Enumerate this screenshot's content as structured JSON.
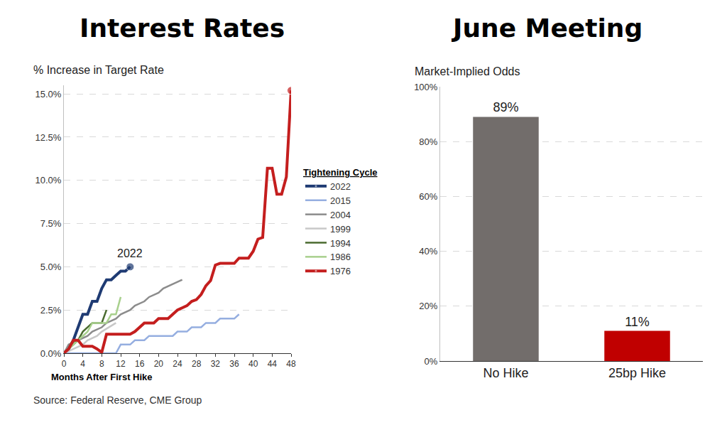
{
  "chart_data": [
    {
      "type": "line",
      "title": "Interest Rates",
      "subtitle": "% Increase in Target Rate",
      "x_label": "Months After First Hike",
      "legend_title": "Tightening Cycle",
      "source": "Source: Federal Reserve, CME Group",
      "annotations": [
        {
          "text": "2022",
          "x": 14,
          "y": 5.0
        }
      ],
      "legend": "right",
      "grid": true,
      "xlim": [
        0,
        48
      ],
      "xticks": [
        0,
        4,
        8,
        12,
        16,
        20,
        24,
        28,
        32,
        36,
        40,
        44,
        48
      ],
      "ylim": [
        0,
        15.5
      ],
      "yticks": [
        {
          "value": 0,
          "label": "0.0%"
        },
        {
          "value": 2.5,
          "label": "2.5%"
        },
        {
          "value": 5,
          "label": "5.0%"
        },
        {
          "value": 7.5,
          "label": "7.5%"
        },
        {
          "value": 10,
          "label": "10.0%"
        },
        {
          "value": 12.5,
          "label": "12.5%"
        },
        {
          "value": 15,
          "label": "15.0%"
        }
      ],
      "series": [
        {
          "name": "2022",
          "color": "#1f3b73",
          "marker": "circle",
          "x": [
            0,
            1,
            2,
            3,
            4,
            5,
            6,
            7,
            8,
            9,
            10,
            11,
            12,
            13,
            14
          ],
          "values": [
            0,
            0.25,
            0.75,
            1.5,
            2.25,
            2.25,
            3.0,
            3.0,
            3.75,
            4.25,
            4.25,
            4.5,
            4.75,
            4.75,
            5.0
          ]
        },
        {
          "name": "2015",
          "color": "#95aee0",
          "x": [
            0,
            11,
            12,
            14,
            15,
            17,
            18,
            23,
            24,
            26,
            27,
            29,
            30,
            32,
            33,
            36,
            37
          ],
          "values": [
            0,
            0,
            0.5,
            0.5,
            0.75,
            0.75,
            1.0,
            1.0,
            1.25,
            1.25,
            1.5,
            1.5,
            1.75,
            1.75,
            2.0,
            2.0,
            2.25
          ]
        },
        {
          "name": "2004",
          "color": "#8c8c8c",
          "x": [
            0,
            1,
            3,
            5,
            6,
            8,
            9,
            11,
            12,
            14,
            15,
            17,
            18,
            20,
            21,
            23,
            25
          ],
          "values": [
            0,
            0.5,
            0.75,
            1.0,
            1.25,
            1.5,
            1.75,
            2.0,
            2.25,
            2.5,
            2.75,
            3.0,
            3.25,
            3.5,
            3.75,
            4.0,
            4.25
          ]
        },
        {
          "name": "1999",
          "color": "#c8c8c8",
          "x": [
            0,
            2,
            4,
            5,
            7,
            8,
            11
          ],
          "values": [
            0,
            0.25,
            0.5,
            0.75,
            1.0,
            1.25,
            1.75
          ]
        },
        {
          "name": "1994",
          "color": "#4a6b2f",
          "x": [
            0,
            1,
            2,
            3,
            4,
            6,
            7,
            8,
            9
          ],
          "values": [
            0,
            0.25,
            0.5,
            0.75,
            1.25,
            1.75,
            1.75,
            1.75,
            2.5
          ]
        },
        {
          "name": "1986",
          "color": "#a8d08d",
          "x": [
            0,
            1,
            2,
            4,
            5,
            6,
            8,
            9,
            10,
            11,
            12
          ],
          "values": [
            0,
            0.25,
            0.5,
            1.0,
            1.25,
            1.75,
            1.75,
            1.75,
            2.25,
            2.25,
            3.25
          ]
        },
        {
          "name": "1976",
          "color": "#c41e1e",
          "marker": "circle",
          "x": [
            0,
            1,
            2,
            3,
            4,
            6,
            7,
            8,
            9,
            10,
            14,
            15,
            17,
            19,
            20,
            22,
            24,
            26,
            27,
            28,
            29,
            30,
            31,
            32,
            33,
            36,
            37,
            39,
            40,
            41,
            42,
            43,
            44,
            45,
            46,
            47,
            48
          ],
          "values": [
            0,
            0.25,
            0.75,
            0.75,
            0.4,
            0.4,
            0.25,
            0.05,
            1.1,
            1.1,
            1.1,
            1.25,
            1.75,
            1.75,
            2.0,
            2.0,
            2.5,
            2.75,
            3.0,
            3.1,
            3.4,
            3.9,
            4.2,
            5.1,
            5.2,
            5.2,
            5.5,
            5.5,
            5.9,
            6.6,
            6.7,
            10.7,
            10.7,
            9.2,
            9.2,
            10.2,
            15.2
          ]
        }
      ]
    },
    {
      "type": "bar",
      "title": "June Meeting",
      "subtitle": "Market-Implied Odds",
      "categories": [
        "No Hike",
        "25bp Hike"
      ],
      "values": [
        89,
        11
      ],
      "value_labels": [
        "89%",
        "11%"
      ],
      "colors": [
        "#726d6b",
        "#c00000"
      ],
      "data_labels": true,
      "grid": true,
      "ylim": [
        0,
        100
      ],
      "yticks": [
        {
          "value": 0,
          "label": "0%"
        },
        {
          "value": 20,
          "label": "20%"
        },
        {
          "value": 40,
          "label": "40%"
        },
        {
          "value": 60,
          "label": "60%"
        },
        {
          "value": 80,
          "label": "80%"
        },
        {
          "value": 100,
          "label": "100%"
        }
      ]
    }
  ]
}
